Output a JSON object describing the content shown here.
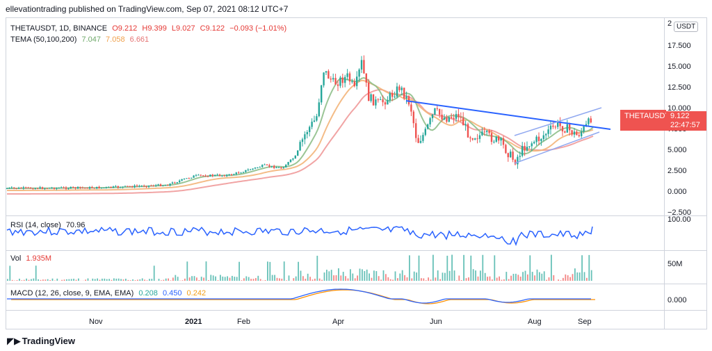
{
  "header": {
    "publisher": "ellevationtrading published on TradingView.com, Sep 07, 2021 08:12 UTC+7"
  },
  "symbol_legend": {
    "symbol": "THETAUSDT, 1D, BINANCE",
    "open": "O9.212",
    "high": "H9.399",
    "low": "L9.027",
    "close": "C9.122",
    "change": "−0.093 (−1.01%)"
  },
  "tema_legend": {
    "label": "TEMA (50,100,200)",
    "v1": "7.047",
    "v2": "7.058",
    "v3": "6.661"
  },
  "price_axis": {
    "currency_button": "USDT",
    "top_partial": "2",
    "ticks": [
      "17.500",
      "15.000",
      "12.500",
      "10.000",
      "7.500",
      "5.000",
      "2.500",
      "0.000",
      "−2.500"
    ]
  },
  "price_tag": {
    "symbol": "THETAUSDT",
    "price": "9.122",
    "countdown": "22:47:57"
  },
  "rsi": {
    "label": "RSI (14, close)",
    "value": "70.96",
    "axis_tick": "100.00"
  },
  "volume": {
    "label": "Vol",
    "value": "1.935M",
    "axis_tick": "50M"
  },
  "macd": {
    "label": "MACD (12, 26, close, 9, EMA, EMA)",
    "v1": "0.208",
    "v2": "0.450",
    "v3": "0.242",
    "axis_tick": "0.000"
  },
  "time_axis": [
    "Nov",
    "2021",
    "Feb",
    "Apr",
    "Jun",
    "Aug",
    "Sep"
  ],
  "footer": {
    "brand": "TradingView"
  },
  "colors": {
    "up": "#26a69a",
    "down": "#ef5350",
    "trendline": "#2962ff",
    "channel": "#90a8f0",
    "tema1": "#8fbf8a",
    "tema2": "#f3b57a",
    "tema3": "#ef9a9a",
    "rsi": "#2962ff",
    "macd": "#2962ff",
    "signal": "#ff8f00"
  }
}
